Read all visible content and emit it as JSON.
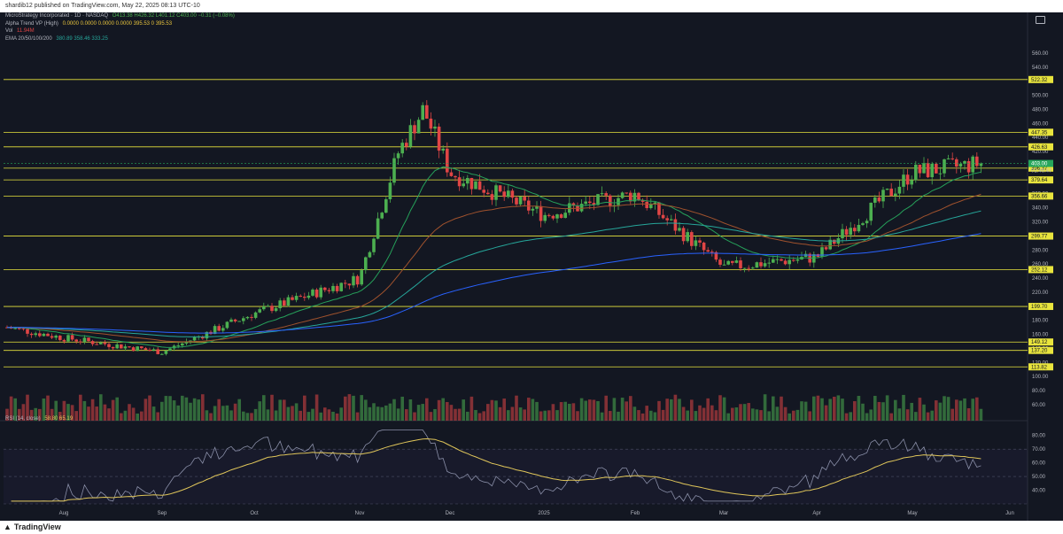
{
  "header": {
    "publish_text": "shardib12 published on TradingView.com, May 22, 2025 08:13 UTC-10"
  },
  "footer": {
    "brand": "TradingView"
  },
  "legend": {
    "symbol_line": "MicroStrategy Incorporated · 1D · NASDAQ",
    "ohlc": "O413.38 H426.32 L401.12 C403.00 −0.31 (−0.08%)",
    "alpha_trend": "Alpha Trend VP (High)",
    "alpha_values": "0.0000 0.0000 0.0000 0.0000 395.53 0 395.53",
    "vol": "Vol",
    "vol_value": "11.94M",
    "ema": "EMA 20/50/100/200",
    "ema_values": "380.89 358.46 333.25"
  },
  "rsi_panel": {
    "label": "RSI (14, close)",
    "values": "58.80 65.19"
  },
  "colors": {
    "background": "#131722",
    "bull": "#4caf50",
    "bear": "#e04545",
    "level_line": "#e8e43d",
    "ema20": "#26a15a",
    "ema50": "#a0522d",
    "ema100": "#26a69a",
    "ema200": "#2962ff",
    "rsi_line": "#8a8fa8",
    "rsi_ma": "#e0c65a",
    "last_price": "#26a65b",
    "marker_bull": "#e8c43d",
    "marker_bear": "#4fc3f7"
  },
  "chart_data": {
    "type": "candlestick",
    "symbol": "MicroStrategy Incorporated",
    "interval": "1D",
    "exchange": "NASDAQ",
    "y_axis_ticks": [
      560,
      540,
      520,
      500,
      480,
      460,
      440,
      420,
      400,
      380,
      360,
      340,
      320,
      300,
      280,
      260,
      240,
      220,
      200,
      180,
      160,
      140,
      120,
      100,
      80,
      60
    ],
    "ylim": [
      60,
      580
    ],
    "x_axis_labels": [
      "Aug",
      "Sep",
      "Oct",
      "Nov",
      "Dec",
      "2025",
      "Feb",
      "Mar",
      "Apr",
      "May",
      "Jun"
    ],
    "horizontal_levels": [
      522.32,
      447.35,
      426.63,
      396.37,
      379.64,
      356.66,
      299.77,
      252.12,
      199.7,
      149.12,
      137.2,
      113.82
    ],
    "last_price": 403.0,
    "last_price_label": "403.00",
    "ema_marker_label": "01:46:47",
    "series": [
      {
        "name": "price",
        "key_closes": [
          [
            "Aug",
            155
          ],
          [
            "Sep",
            135
          ],
          [
            "Oct",
            190
          ],
          [
            "Nov",
            240
          ],
          [
            "Nov+2w",
            420
          ],
          [
            "Nov+3w",
            480
          ],
          [
            "Dec",
            390
          ],
          [
            "2025",
            330
          ],
          [
            "Feb",
            360
          ],
          [
            "Mar",
            255
          ],
          [
            "Apr",
            270
          ],
          [
            "May",
            390
          ],
          [
            "May+3w",
            403
          ]
        ]
      }
    ],
    "rsi": {
      "ylim": [
        30,
        85
      ],
      "ticks": [
        80,
        70,
        60,
        50,
        40
      ],
      "levels": [
        70,
        50,
        30
      ],
      "last": 58.8,
      "ma_last": 65.19
    }
  }
}
